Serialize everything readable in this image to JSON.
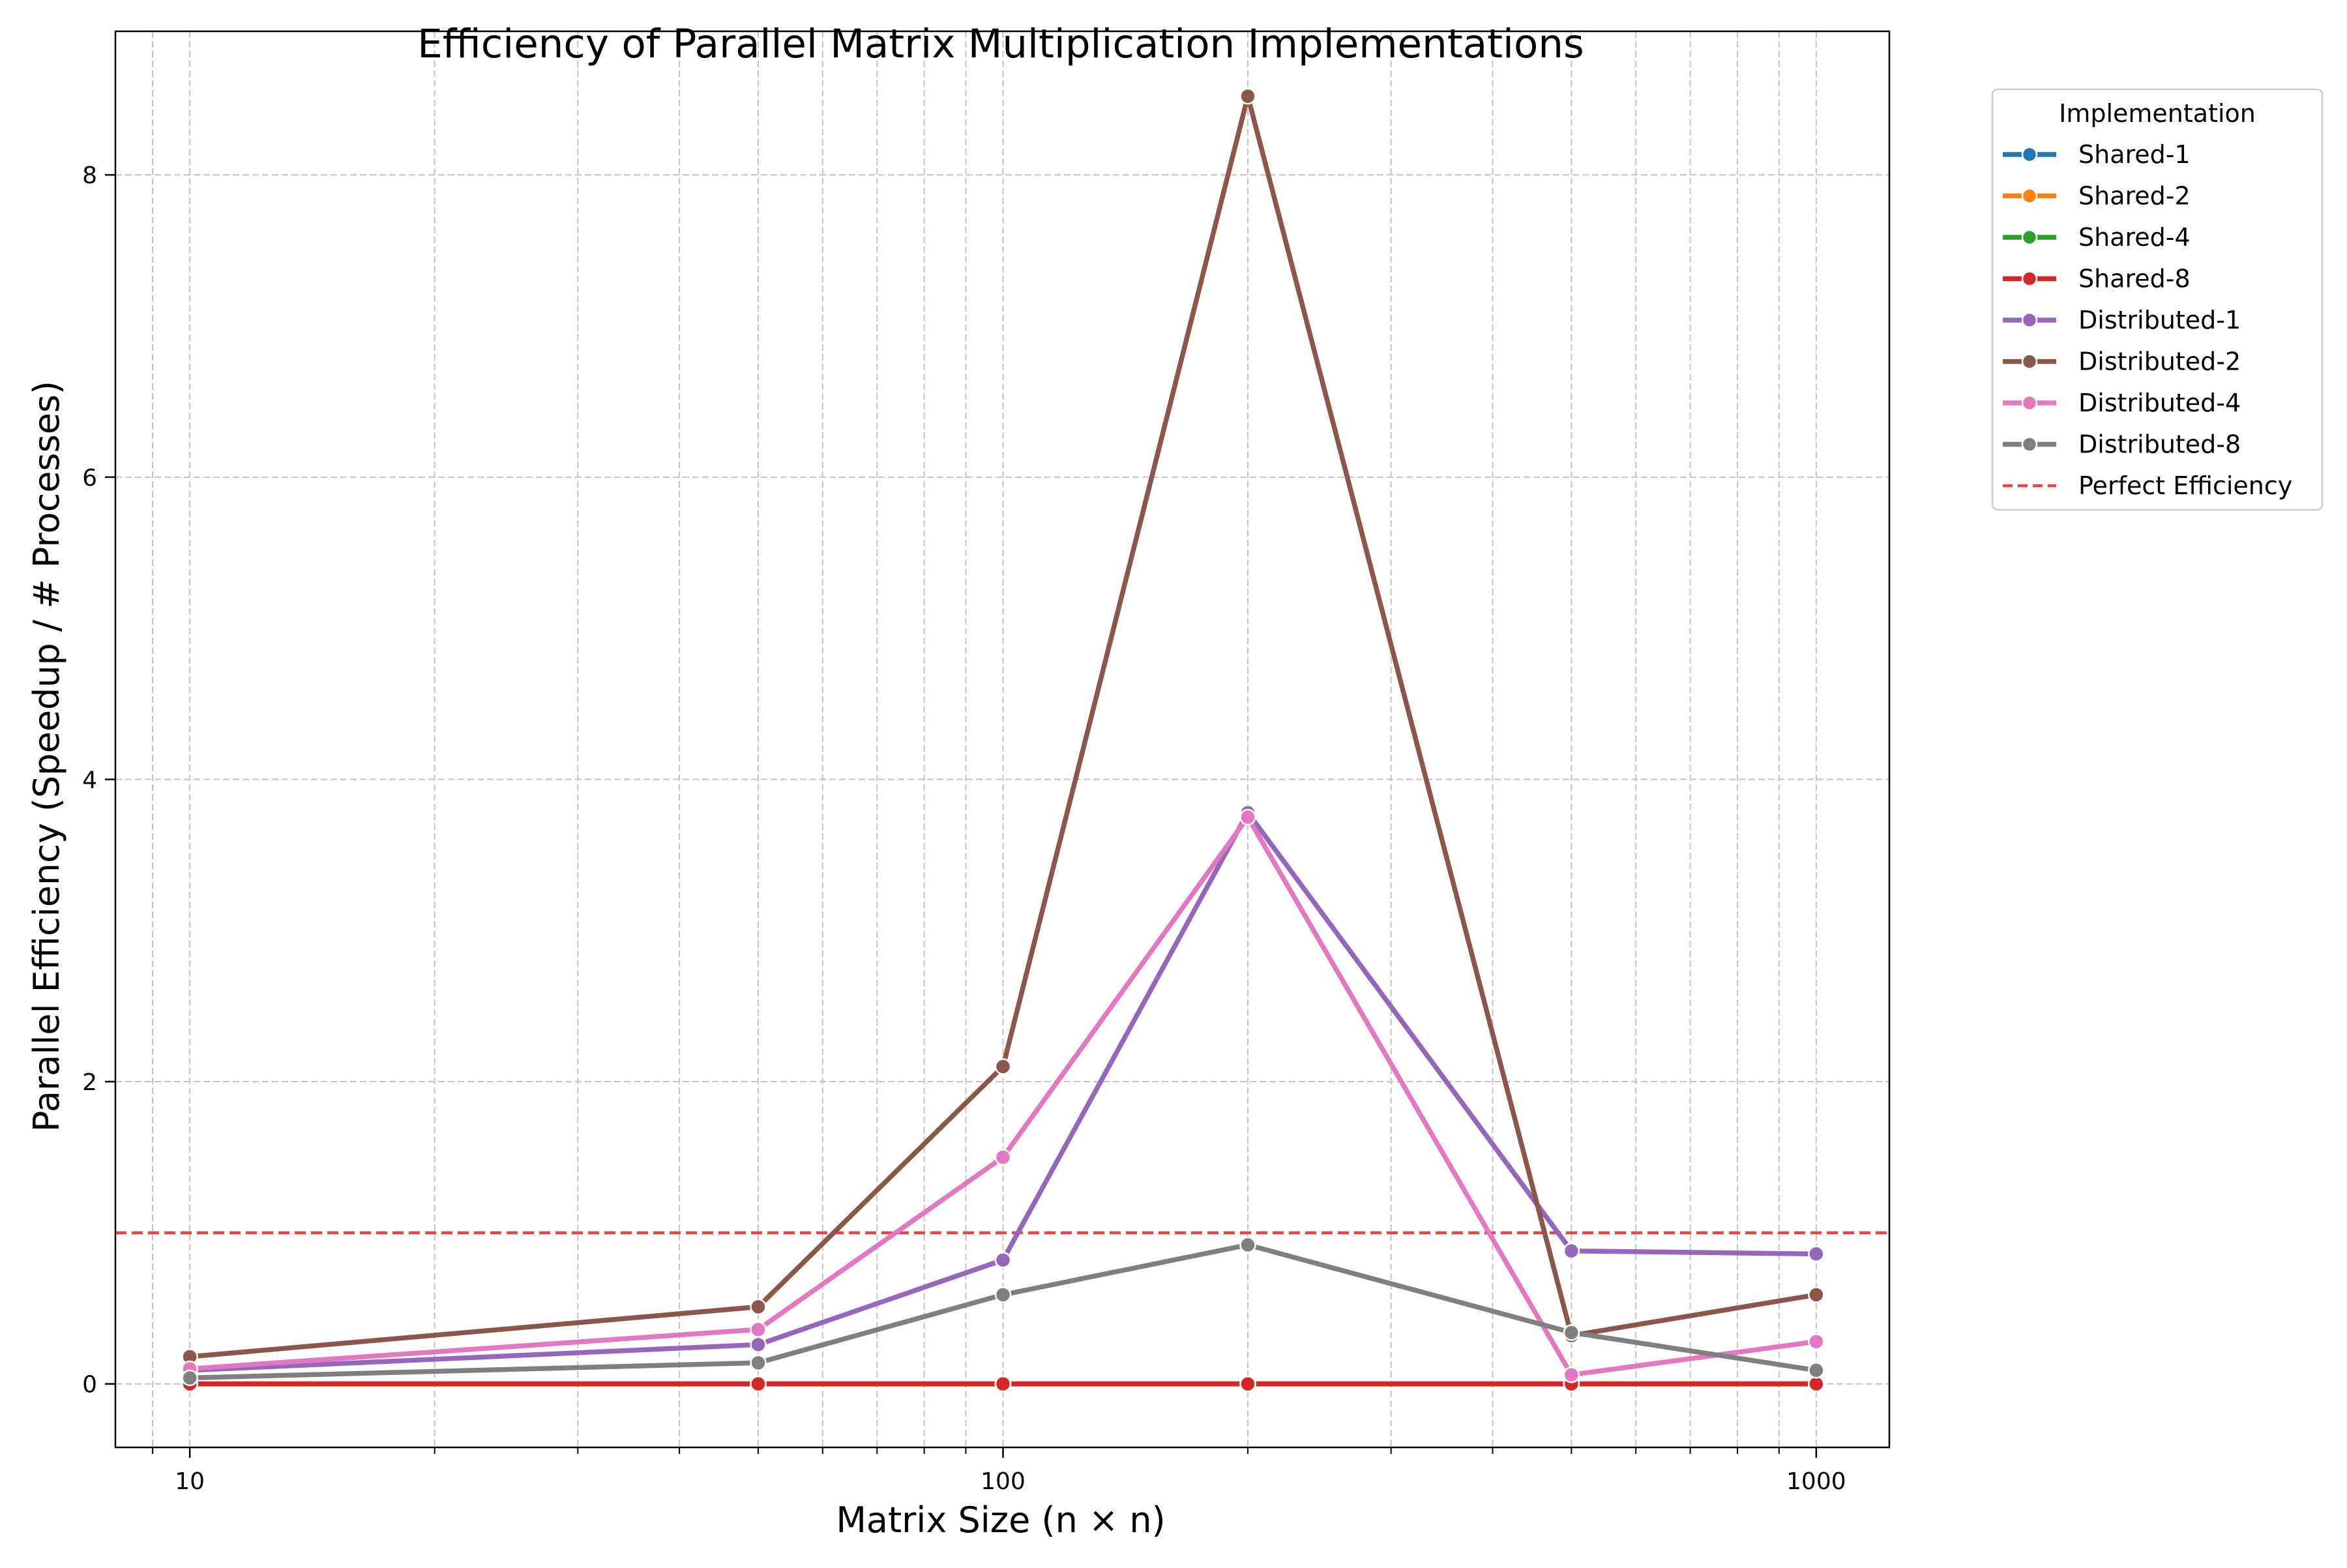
{
  "chart_data": {
    "type": "line",
    "title": "Efficiency of Parallel Matrix Multiplication Implementations",
    "xlabel": "Matrix Size (n × n)",
    "ylabel": "Parallel Efficiency (Speedup / # Processes)",
    "xscale": "log",
    "xlim": [
      8.1,
      1230
    ],
    "ylim": [
      -0.42,
      8.95
    ],
    "x": [
      10,
      50,
      100,
      200,
      500,
      1000
    ],
    "x_ticks": [
      10,
      100,
      1000
    ],
    "x_tick_labels": [
      "10",
      "100",
      "1000"
    ],
    "y_ticks": [
      0,
      2,
      4,
      6,
      8
    ],
    "y_tick_labels": [
      "0",
      "2",
      "4",
      "6",
      "8"
    ],
    "grid": true,
    "legend_title": "Implementation",
    "legend_position": "outside-top-right",
    "series": [
      {
        "name": "Shared-1",
        "color": "#1f77b4",
        "values": [
          0,
          0,
          0,
          0,
          0,
          0
        ]
      },
      {
        "name": "Shared-2",
        "color": "#ff7f0e",
        "values": [
          0,
          0,
          0,
          0,
          0,
          0
        ]
      },
      {
        "name": "Shared-4",
        "color": "#2ca02c",
        "values": [
          0,
          0,
          0,
          0,
          0,
          0
        ]
      },
      {
        "name": "Shared-8",
        "color": "#d62728",
        "values": [
          0,
          0,
          0,
          0,
          0,
          0
        ]
      },
      {
        "name": "Distributed-1",
        "color": "#9467bd",
        "values": [
          0.09,
          0.26,
          0.82,
          3.78,
          0.88,
          0.86
        ]
      },
      {
        "name": "Distributed-2",
        "color": "#8c564b",
        "values": [
          0.18,
          0.51,
          2.1,
          8.52,
          0.32,
          0.59
        ]
      },
      {
        "name": "Distributed-4",
        "color": "#e377c2",
        "values": [
          0.1,
          0.36,
          1.5,
          3.75,
          0.06,
          0.28
        ]
      },
      {
        "name": "Distributed-8",
        "color": "#7f7f7f",
        "values": [
          0.04,
          0.14,
          0.59,
          0.92,
          0.34,
          0.09
        ]
      }
    ],
    "reference_line": {
      "name": "Perfect Efficiency",
      "y": 1.0,
      "color": "#f04040",
      "style": "dashed"
    }
  }
}
